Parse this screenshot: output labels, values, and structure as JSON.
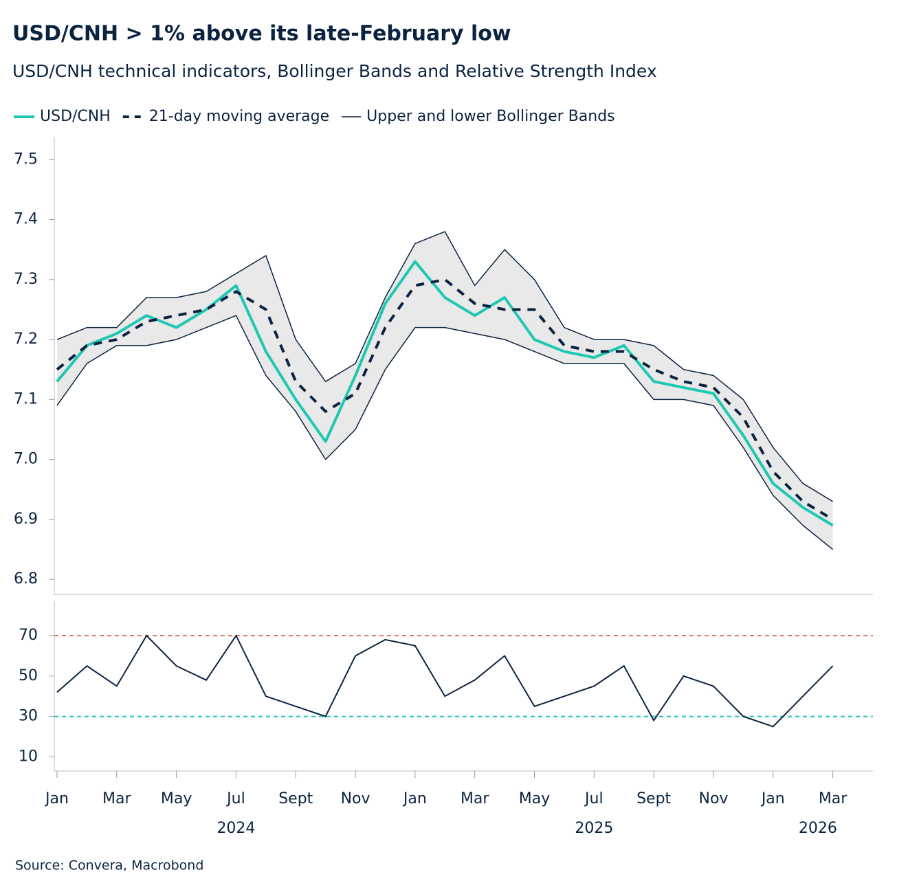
{
  "chart_data": [
    {
      "type": "line",
      "title": "USD/CNH > 1% above its late-February low",
      "subtitle": "USD/CNH technical indicators, Bollinger Bands and Relative Strength Index",
      "x": [
        "2024-01",
        "2024-02",
        "2024-03",
        "2024-04",
        "2024-05",
        "2024-06",
        "2024-07",
        "2024-08",
        "2024-09",
        "2024-10",
        "2024-11",
        "2024-12",
        "2025-01",
        "2025-02",
        "2025-03",
        "2025-04",
        "2025-05",
        "2025-06",
        "2025-07",
        "2025-08",
        "2025-09",
        "2025-10",
        "2025-11",
        "2025-12",
        "2026-01",
        "2026-02",
        "2026-03"
      ],
      "xlim": [
        "2024-01",
        "2026-04"
      ],
      "ylim": [
        6.775,
        7.537
      ],
      "yticks": [
        {
          "value": 6.8,
          "label": "6.8"
        },
        {
          "value": 6.9,
          "label": "6.9"
        },
        {
          "value": 7.0,
          "label": "7.0"
        },
        {
          "value": 7.1,
          "label": "7.1"
        },
        {
          "value": 7.2,
          "label": "7.2"
        },
        {
          "value": 7.3,
          "label": "7.3"
        },
        {
          "value": 7.4,
          "label": "7.4"
        },
        {
          "value": 7.5,
          "label": "7.5"
        }
      ],
      "series": [
        {
          "name": "USD/CNH",
          "color": "#1ec8b0",
          "style": "solid",
          "values": [
            7.13,
            7.19,
            7.21,
            7.24,
            7.22,
            7.25,
            7.29,
            7.18,
            7.1,
            7.03,
            7.14,
            7.26,
            7.33,
            7.27,
            7.24,
            7.27,
            7.2,
            7.18,
            7.17,
            7.19,
            7.13,
            7.12,
            7.11,
            7.04,
            6.96,
            6.92,
            6.89
          ]
        },
        {
          "name": "21-day moving average",
          "color": "#0c2340",
          "style": "dashed",
          "values": [
            7.15,
            7.19,
            7.2,
            7.23,
            7.24,
            7.25,
            7.28,
            7.25,
            7.13,
            7.08,
            7.11,
            7.22,
            7.29,
            7.3,
            7.26,
            7.25,
            7.25,
            7.19,
            7.18,
            7.18,
            7.15,
            7.13,
            7.12,
            7.07,
            6.98,
            6.93,
            6.9
          ]
        },
        {
          "name": "Upper and lower Bollinger Bands",
          "color": "#0c2340",
          "style": "band",
          "values": [
            7.2,
            7.22,
            7.22,
            7.27,
            7.27,
            7.28,
            7.31,
            7.34,
            7.2,
            7.13,
            7.16,
            7.27,
            7.36,
            7.38,
            7.29,
            7.35,
            7.3,
            7.22,
            7.2,
            7.2,
            7.19,
            7.15,
            7.14,
            7.1,
            7.02,
            6.96,
            6.93
          ],
          "lower": [
            7.09,
            7.16,
            7.19,
            7.19,
            7.2,
            7.22,
            7.24,
            7.14,
            7.08,
            7.0,
            7.05,
            7.15,
            7.22,
            7.22,
            7.21,
            7.2,
            7.18,
            7.16,
            7.16,
            7.16,
            7.1,
            7.1,
            7.09,
            7.02,
            6.94,
            6.89,
            6.85
          ]
        }
      ]
    },
    {
      "type": "line",
      "x": [
        "2024-01",
        "2024-02",
        "2024-03",
        "2024-04",
        "2024-05",
        "2024-06",
        "2024-07",
        "2024-08",
        "2024-09",
        "2024-10",
        "2024-11",
        "2024-12",
        "2025-01",
        "2025-02",
        "2025-03",
        "2025-04",
        "2025-05",
        "2025-06",
        "2025-07",
        "2025-08",
        "2025-09",
        "2025-10",
        "2025-11",
        "2025-12",
        "2026-01",
        "2026-02",
        "2026-03"
      ],
      "xlim": [
        "2024-01",
        "2026-04"
      ],
      "ylim": [
        3,
        87
      ],
      "yticks": [
        10,
        30,
        50,
        70
      ],
      "reference_lines": [
        {
          "value": 70,
          "color": "#e0736b"
        },
        {
          "value": 30,
          "color": "#1ec8b0"
        }
      ],
      "color": "#0c2340",
      "values": [
        42,
        55,
        45,
        70,
        55,
        48,
        70,
        40,
        35,
        30,
        60,
        68,
        65,
        40,
        48,
        60,
        35,
        40,
        45,
        55,
        28,
        50,
        45,
        30,
        25,
        40,
        55
      ],
      "xticks": [
        {
          "value": "2024-01",
          "label": "Jan"
        },
        {
          "value": "2024-03",
          "label": "Mar"
        },
        {
          "value": "2024-05",
          "label": "May"
        },
        {
          "value": "2024-07",
          "label": "Jul"
        },
        {
          "value": "2024-09",
          "label": "Sept"
        },
        {
          "value": "2024-11",
          "label": "Nov"
        },
        {
          "value": "2025-01",
          "label": "Jan"
        },
        {
          "value": "2025-03",
          "label": "Mar"
        },
        {
          "value": "2025-05",
          "label": "May"
        },
        {
          "value": "2025-07",
          "label": "Jul"
        },
        {
          "value": "2025-09",
          "label": "Sept"
        },
        {
          "value": "2025-11",
          "label": "Nov"
        },
        {
          "value": "2026-01",
          "label": "Jan"
        },
        {
          "value": "2026-03",
          "label": "Mar"
        }
      ],
      "years": [
        "2024",
        "2025",
        "2026"
      ]
    }
  ],
  "source": "Source: Convera, Macrobond"
}
